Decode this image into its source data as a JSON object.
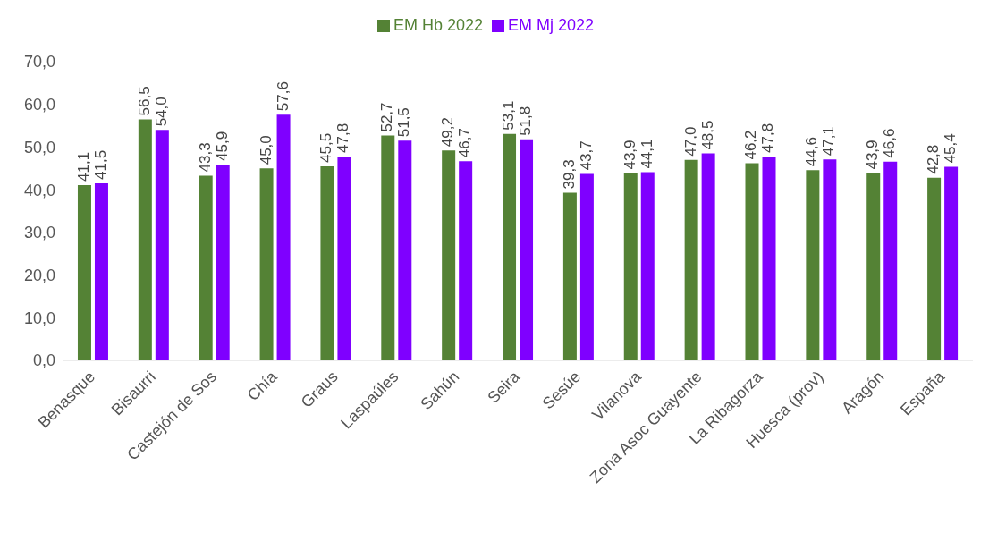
{
  "chart_data": {
    "type": "bar",
    "categories": [
      "Benasque",
      "Bisaurri",
      "Castejón de Sos",
      "Chía",
      "Graus",
      "Laspaúles",
      "Sahún",
      "Seira",
      "Sesúe",
      "Vilanova",
      "Zona Asoc Guayente",
      "La Ribagorza",
      "Huesca (prov)",
      "Aragón",
      "España"
    ],
    "series": [
      {
        "name": "EM Hb 2022",
        "color": "#548235",
        "values": [
          41.1,
          56.5,
          43.3,
          45.0,
          45.5,
          52.7,
          49.2,
          53.1,
          39.3,
          43.9,
          47.0,
          46.2,
          44.6,
          43.9,
          42.8
        ],
        "value_labels": [
          "41,1",
          "56,5",
          "43,3",
          "45,0",
          "45,5",
          "52,7",
          "49,2",
          "53,1",
          "39,3",
          "43,9",
          "47,0",
          "46,2",
          "44,6",
          "43,9",
          "42,8"
        ]
      },
      {
        "name": "EM Mj 2022",
        "color": "#7f00ff",
        "values": [
          41.5,
          54.0,
          45.9,
          57.6,
          47.8,
          51.5,
          46.7,
          51.8,
          43.7,
          44.1,
          48.5,
          47.8,
          47.1,
          46.6,
          45.4
        ],
        "value_labels": [
          "41,5",
          "54,0",
          "45,9",
          "57,6",
          "47,8",
          "51,5",
          "46,7",
          "51,8",
          "43,7",
          "44,1",
          "48,5",
          "47,8",
          "47,1",
          "46,6",
          "45,4"
        ]
      }
    ],
    "ylim": [
      0,
      70
    ],
    "yticks": [
      {
        "value": 0,
        "label": "0,0"
      },
      {
        "value": 10,
        "label": "10,0"
      },
      {
        "value": 20,
        "label": "20,0"
      },
      {
        "value": 30,
        "label": "30,0"
      },
      {
        "value": 40,
        "label": "40,0"
      },
      {
        "value": 50,
        "label": "50,0"
      },
      {
        "value": 60,
        "label": "60,0"
      },
      {
        "value": 70,
        "label": "70,0"
      }
    ],
    "grid": false,
    "legend": "top"
  }
}
